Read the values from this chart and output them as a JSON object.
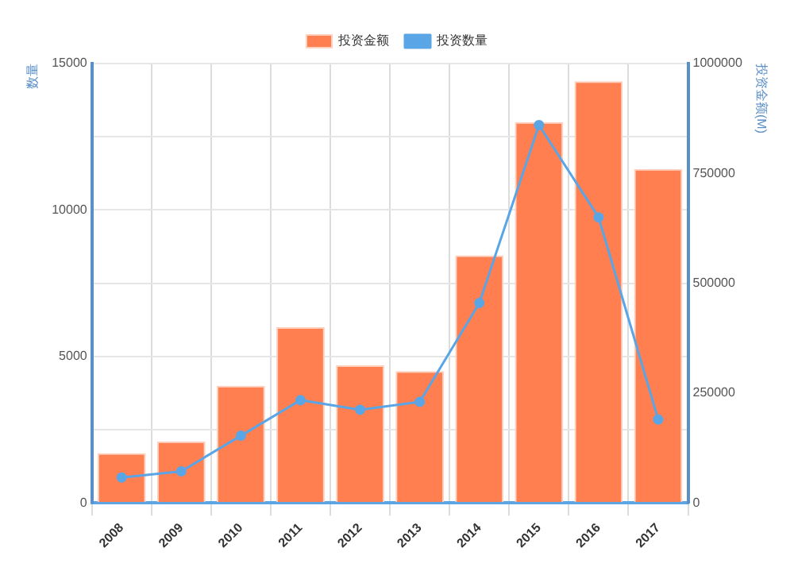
{
  "chart_data": {
    "type": "bar",
    "categories": [
      "2008",
      "2009",
      "2010",
      "2011",
      "2012",
      "2013",
      "2014",
      "2015",
      "2016",
      "2017"
    ],
    "ylabel": "数量",
    "y2label": "投资金额(M)",
    "series": [
      {
        "name": "投资金额",
        "color": "#ff7f50",
        "values": [
          1700,
          2100,
          4000,
          6000,
          4700,
          4500,
          8450,
          13000,
          14400,
          11400
        ]
      },
      {
        "name": "投资数量",
        "type": "line",
        "axis": "y2",
        "color": "#5aa5e6",
        "values": [
          58000,
          72000,
          153000,
          234000,
          212000,
          230000,
          455000,
          860000,
          650000,
          190000
        ]
      }
    ],
    "ylim": [
      0,
      15000
    ],
    "yticks": [
      0,
      {
        "value": 2500,
        "label": null
      },
      5000,
      {
        "value": 7500,
        "label": null
      },
      10000,
      {
        "value": 12500,
        "label": null
      },
      15000
    ],
    "y2lim": [
      0,
      1000000
    ],
    "y2ticks": [
      0,
      250000,
      500000,
      750000,
      1000000
    ],
    "grid": true,
    "legend": "top",
    "marker": "circle"
  }
}
